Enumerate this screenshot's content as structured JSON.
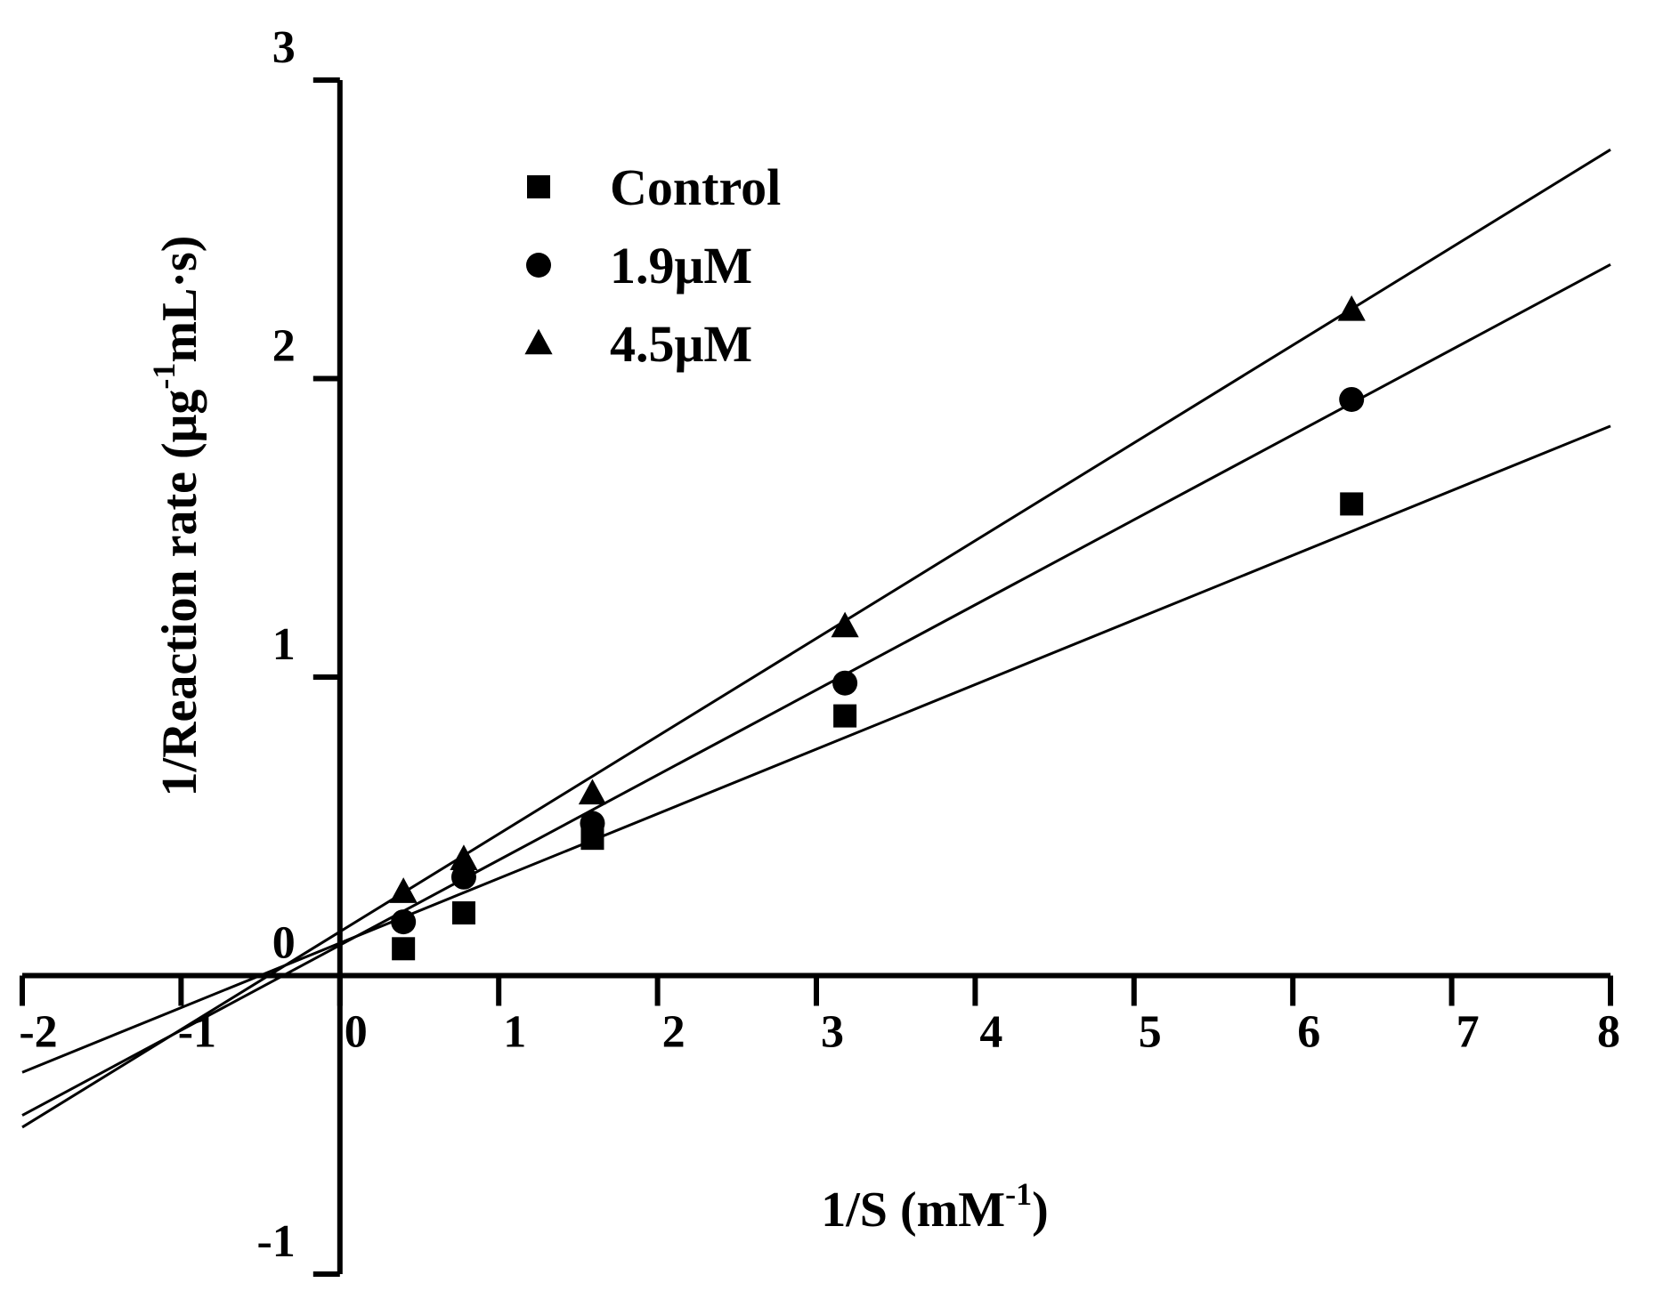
{
  "chart_data": {
    "type": "scatter",
    "title": "",
    "xlabel": "1/S (mM",
    "xlabel_superscript": "-1",
    "xlabel_suffix": ")",
    "ylabel": "1/Reaction rate (μg",
    "ylabel_superscript": "-1",
    "ylabel_suffix": "mL·s)",
    "xlim": [
      -2,
      8
    ],
    "ylim": [
      -1,
      3
    ],
    "x_ticks": [
      -2,
      -1,
      0,
      1,
      2,
      3,
      4,
      5,
      6,
      7,
      8
    ],
    "x_tick_labels": [
      "-2",
      "-1",
      "0",
      "1",
      "2",
      "3",
      "4",
      "5",
      "6",
      "7",
      "8"
    ],
    "y_ticks": [
      -1,
      0,
      1,
      2,
      3
    ],
    "y_tick_labels": [
      "-1",
      "0",
      "1",
      "2",
      "3"
    ],
    "grid": false,
    "legend_position": "top-left",
    "series": [
      {
        "name": "Control",
        "marker": "square",
        "x": [
          0.4,
          0.78,
          1.59,
          3.18,
          6.37
        ],
        "y": [
          0.09,
          0.21,
          0.46,
          0.87,
          1.58
        ],
        "fit": {
          "slope": 0.2165,
          "intercept": 0.109,
          "x_range": [
            -2,
            8
          ]
        }
      },
      {
        "name": "1.9μM",
        "marker": "circle",
        "x": [
          0.4,
          0.78,
          1.59,
          3.18,
          6.37
        ],
        "y": [
          0.18,
          0.33,
          0.51,
          0.98,
          1.93
        ],
        "fit": {
          "slope": 0.285,
          "intercept": 0.102,
          "x_range": [
            -2,
            8
          ]
        }
      },
      {
        "name": "4.5μM",
        "marker": "triangle",
        "x": [
          0.4,
          0.78,
          1.59,
          3.18,
          6.37
        ],
        "y": [
          0.28,
          0.39,
          0.61,
          1.17,
          2.23
        ],
        "fit": {
          "slope": 0.3275,
          "intercept": 0.147,
          "x_range": [
            -2,
            8
          ]
        }
      }
    ]
  }
}
